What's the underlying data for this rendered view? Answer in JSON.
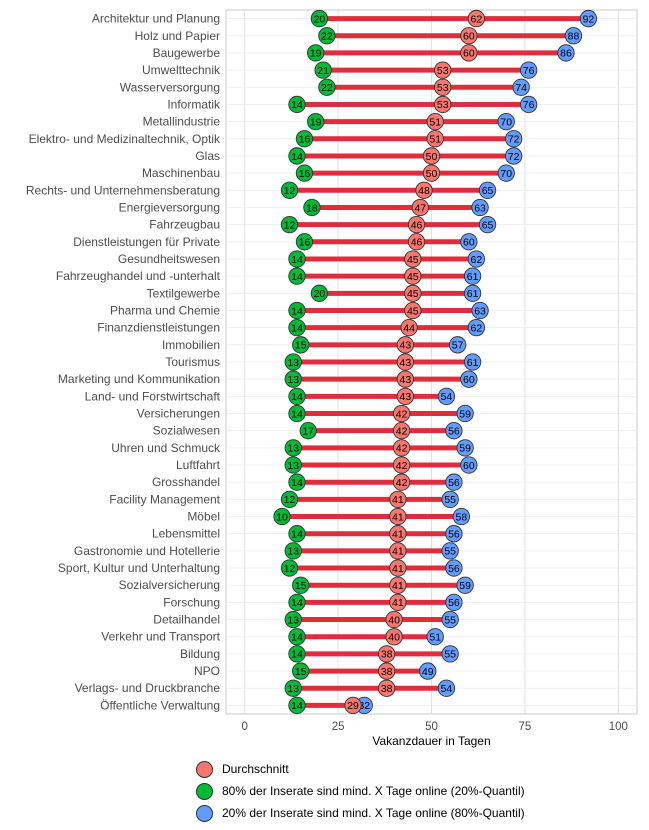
{
  "chart_data": {
    "type": "dumbbell",
    "xlabel": "Vakanzdauer in Tagen",
    "xlim": [
      -5,
      105
    ],
    "xticks": [
      0,
      25,
      50,
      75,
      100
    ],
    "colors": {
      "mean": "#f8766d",
      "q20": "#00ba38",
      "q80": "#619cff",
      "segment": "#e02c3c",
      "panel_border": "#c8c8c8",
      "grid": "#e0e0e0"
    },
    "legend": [
      {
        "key": "mean",
        "label": "Durchschnitt"
      },
      {
        "key": "q20",
        "label": "80% der Inserate sind mind. X Tage online (20%-Quantil)"
      },
      {
        "key": "q80",
        "label": "20% der Inserate sind mind. X Tage online (80%-Quantil)"
      }
    ],
    "legend_position": "bottom",
    "categories": [
      "Architektur und Planung",
      "Holz und Papier",
      "Baugewerbe",
      "Umwelttechnik",
      "Wasserversorgung",
      "Informatik",
      "Metallindustrie",
      "Elektro- und Medizinaltechnik, Optik",
      "Glas",
      "Maschinenbau",
      "Rechts- und Unternehmensberatung",
      "Energieversorgung",
      "Fahrzeugbau",
      "Dienstleistungen für Private",
      "Gesundheitswesen",
      "Fahrzeughandel und -unterhalt",
      "Textilgewerbe",
      "Pharma und Chemie",
      "Finanzdienstleistungen",
      "Immobilien",
      "Tourismus",
      "Marketing und Kommunikation",
      "Land- und Forstwirtschaft",
      "Versicherungen",
      "Sozialwesen",
      "Uhren und Schmuck",
      "Luftfahrt",
      "Grosshandel",
      "Facility Management",
      "Möbel",
      "Lebensmittel",
      "Gastronomie und Hotellerie",
      "Sport, Kultur und Unterhaltung",
      "Sozialversicherung",
      "Forschung",
      "Detailhandel",
      "Verkehr und Transport",
      "Bildung",
      "NPO",
      "Verlags- und Druckbranche",
      "Öffentliche Verwaltung"
    ],
    "mean": [
      62,
      60,
      60,
      53,
      53,
      53,
      51,
      51,
      50,
      50,
      48,
      47,
      46,
      46,
      45,
      45,
      45,
      45,
      44,
      43,
      43,
      43,
      43,
      42,
      42,
      42,
      42,
      42,
      41,
      41,
      41,
      41,
      41,
      41,
      41,
      40,
      40,
      38,
      38,
      38,
      29
    ],
    "q20": [
      20,
      22,
      19,
      21,
      22,
      14,
      19,
      16,
      14,
      16,
      12,
      18,
      12,
      16,
      14,
      14,
      20,
      14,
      14,
      15,
      13,
      13,
      14,
      14,
      17,
      13,
      13,
      14,
      12,
      10,
      14,
      13,
      12,
      15,
      14,
      13,
      14,
      14,
      15,
      13,
      14
    ],
    "q80": [
      92,
      88,
      86,
      76,
      74,
      76,
      70,
      72,
      72,
      70,
      65,
      63,
      65,
      60,
      62,
      61,
      61,
      63,
      62,
      57,
      61,
      60,
      54,
      59,
      56,
      59,
      60,
      56,
      55,
      58,
      56,
      55,
      56,
      59,
      56,
      55,
      51,
      55,
      49,
      54,
      32
    ]
  }
}
